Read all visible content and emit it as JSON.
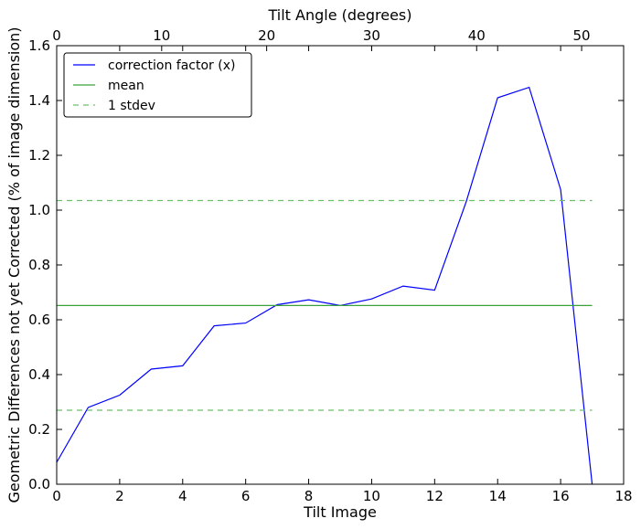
{
  "chart_data": {
    "type": "line",
    "xlabel": "Tilt Image",
    "x2label": "Tilt Angle (degrees)",
    "ylabel": "Geometric Differences not yet Corrected (% of image dimension)",
    "xlim": [
      0,
      18
    ],
    "ylim": [
      0,
      1.6
    ],
    "x2lim": [
      0,
      54
    ],
    "xticks": [
      "0",
      "2",
      "4",
      "6",
      "8",
      "10",
      "12",
      "14",
      "16",
      "18"
    ],
    "yticks": [
      "0.0",
      "0.2",
      "0.4",
      "0.6",
      "0.8",
      "1.0",
      "1.2",
      "1.4",
      "1.6"
    ],
    "x2ticks": [
      "0",
      "10",
      "20",
      "30",
      "40",
      "50"
    ],
    "grid": false,
    "legend_position": "top-left",
    "series": [
      {
        "name": "correction factor (x)",
        "color": "#0000ff",
        "style": "solid",
        "x": [
          0,
          1,
          2,
          3,
          4,
          5,
          6,
          7,
          8,
          9,
          10,
          11,
          12,
          13,
          14,
          15,
          16,
          17
        ],
        "y": [
          0.08,
          0.28,
          0.325,
          0.42,
          0.432,
          0.578,
          0.588,
          0.655,
          0.673,
          0.652,
          0.676,
          0.723,
          0.708,
          1.03,
          1.41,
          1.448,
          1.075,
          0.0
        ]
      },
      {
        "name": "mean",
        "color": "#3aa03a",
        "style": "solid",
        "x": [
          0,
          17
        ],
        "y": [
          0.652,
          0.652
        ]
      },
      {
        "name": "1 stdev",
        "color": "#6cc06c",
        "style": "dashed",
        "x": [
          0,
          17
        ],
        "y": [
          1.035,
          1.035
        ]
      },
      {
        "name": "1 stdev",
        "color": "#6cc06c",
        "style": "dashed",
        "x": [
          0,
          17
        ],
        "y": [
          0.27,
          0.27
        ],
        "in_legend": false
      }
    ]
  }
}
